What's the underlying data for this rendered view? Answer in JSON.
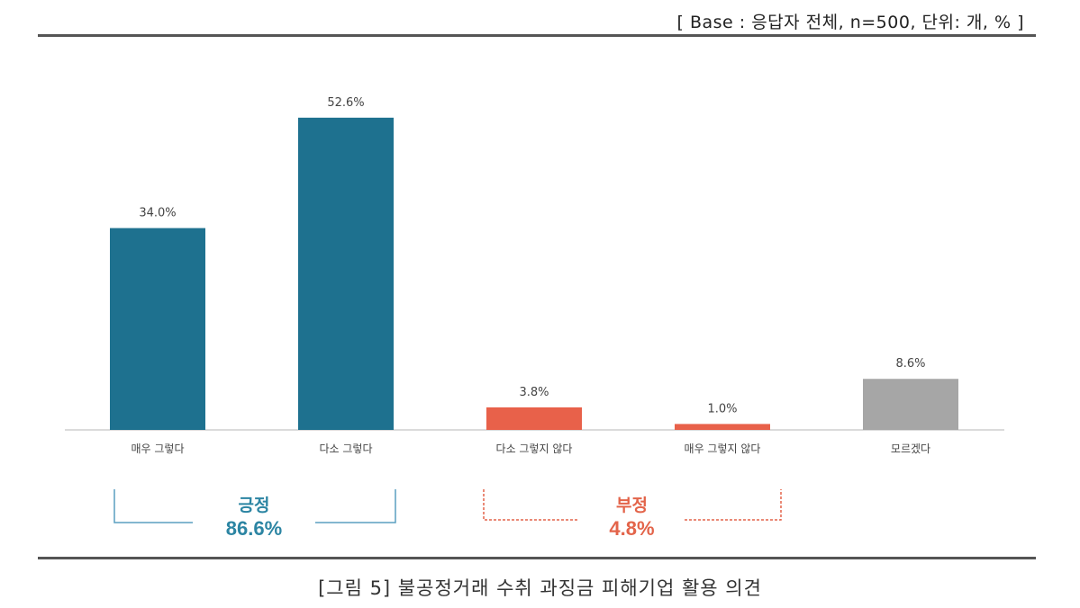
{
  "base_note": "[ Base : 응답자 전체, n=500, 단위: 개, % ]",
  "caption": "[그림 5] 불공정거래 수취 과징금 피해기업 활용 의견",
  "chart_data": {
    "type": "bar",
    "categories": [
      "매우 그렇다",
      "다소 그렇다",
      "다소 그렇지 않다",
      "매우 그렇지 않다",
      "모르겠다"
    ],
    "values": [
      34.0,
      52.6,
      3.8,
      1.0,
      8.6
    ],
    "value_labels": [
      "34.0%",
      "52.6%",
      "3.8%",
      "1.0%",
      "8.6%"
    ],
    "colors": [
      "#1e718f",
      "#1e718f",
      "#e8614a",
      "#e8614a",
      "#a6a6a6"
    ],
    "ylim": [
      0,
      60
    ],
    "grid": false,
    "title": "",
    "xlabel": "",
    "ylabel": ""
  },
  "groups": {
    "positive": {
      "name": "긍정",
      "value": "86.6%",
      "color": "#2c85a3"
    },
    "negative": {
      "name": "부정",
      "value": "4.8%",
      "color": "#e3644a"
    }
  }
}
